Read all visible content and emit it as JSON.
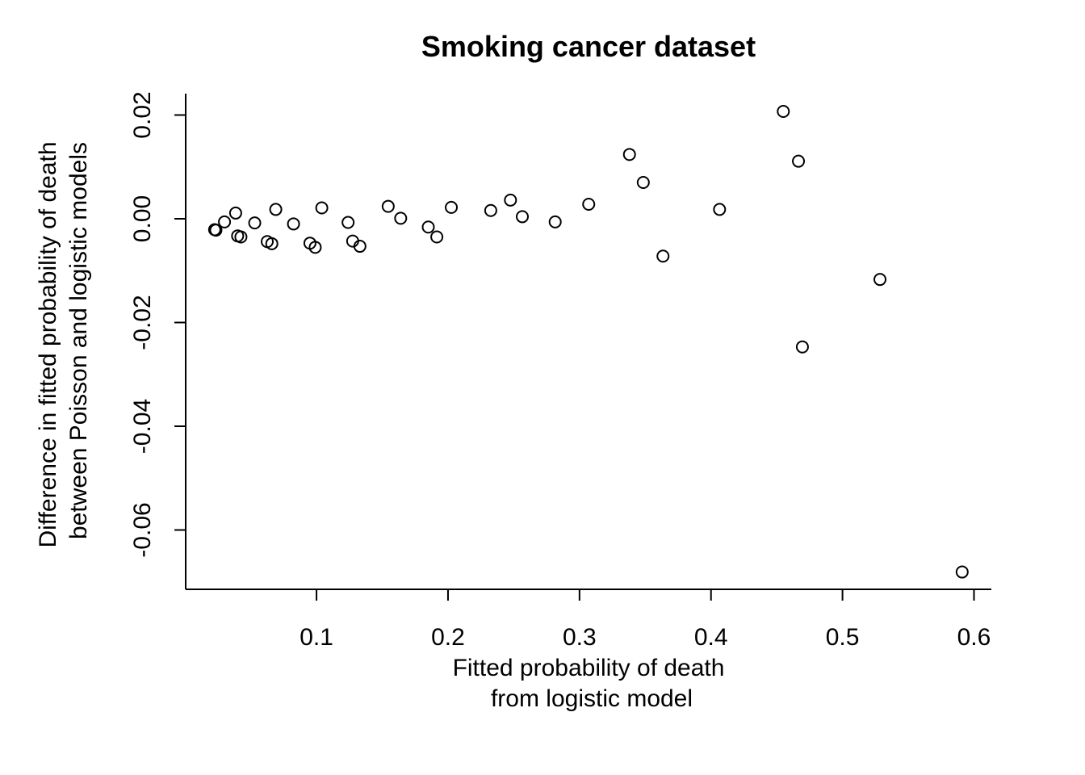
{
  "chart_data": {
    "type": "scatter",
    "title": "Smoking cancer dataset",
    "xlabel": [
      "Fitted probability of death",
      "from logistic model"
    ],
    "ylabel": [
      "Difference in fitted probability of death",
      "between Poisson and logistic models"
    ],
    "xlim": [
      0.0,
      0.615
    ],
    "ylim": [
      -0.0705,
      0.0245
    ],
    "xticks": [
      {
        "value": 0.1,
        "label": "0.1"
      },
      {
        "value": 0.2,
        "label": "0.2"
      },
      {
        "value": 0.3,
        "label": "0.3"
      },
      {
        "value": 0.4,
        "label": "0.4"
      },
      {
        "value": 0.5,
        "label": "0.5"
      },
      {
        "value": 0.6,
        "label": "0.6"
      }
    ],
    "yticks": [
      {
        "value": -0.06,
        "label": "-0.06"
      },
      {
        "value": -0.04,
        "label": "-0.04"
      },
      {
        "value": -0.02,
        "label": "-0.02"
      },
      {
        "value": 0.0,
        "label": "0.00"
      },
      {
        "value": 0.02,
        "label": "0.02"
      }
    ],
    "grid": false,
    "points": [
      {
        "x": 0.0225,
        "y": -0.0021
      },
      {
        "x": 0.0235,
        "y": -0.0022
      },
      {
        "x": 0.03,
        "y": -0.0006
      },
      {
        "x": 0.0385,
        "y": 0.0011
      },
      {
        "x": 0.04,
        "y": -0.0033
      },
      {
        "x": 0.0425,
        "y": -0.0035
      },
      {
        "x": 0.053,
        "y": -0.0008
      },
      {
        "x": 0.0625,
        "y": -0.0044
      },
      {
        "x": 0.066,
        "y": -0.0048
      },
      {
        "x": 0.069,
        "y": 0.0018
      },
      {
        "x": 0.0825,
        "y": -0.001
      },
      {
        "x": 0.095,
        "y": -0.0047
      },
      {
        "x": 0.099,
        "y": -0.0055
      },
      {
        "x": 0.104,
        "y": 0.0021
      },
      {
        "x": 0.124,
        "y": -0.0007
      },
      {
        "x": 0.1275,
        "y": -0.0043
      },
      {
        "x": 0.133,
        "y": -0.0053
      },
      {
        "x": 0.1545,
        "y": 0.0024
      },
      {
        "x": 0.164,
        "y": 0.0001
      },
      {
        "x": 0.185,
        "y": -0.0016
      },
      {
        "x": 0.1915,
        "y": -0.0035
      },
      {
        "x": 0.2025,
        "y": 0.0022
      },
      {
        "x": 0.2325,
        "y": 0.0016
      },
      {
        "x": 0.2475,
        "y": 0.0036
      },
      {
        "x": 0.2565,
        "y": 0.0004
      },
      {
        "x": 0.2815,
        "y": -0.0006
      },
      {
        "x": 0.307,
        "y": 0.0028
      },
      {
        "x": 0.338,
        "y": 0.0124
      },
      {
        "x": 0.3485,
        "y": 0.007
      },
      {
        "x": 0.3635,
        "y": -0.0072
      },
      {
        "x": 0.4065,
        "y": 0.0018
      },
      {
        "x": 0.455,
        "y": 0.0207
      },
      {
        "x": 0.4665,
        "y": 0.0111
      },
      {
        "x": 0.4695,
        "y": -0.0247
      },
      {
        "x": 0.5285,
        "y": -0.0117
      },
      {
        "x": 0.591,
        "y": -0.0681
      }
    ]
  }
}
